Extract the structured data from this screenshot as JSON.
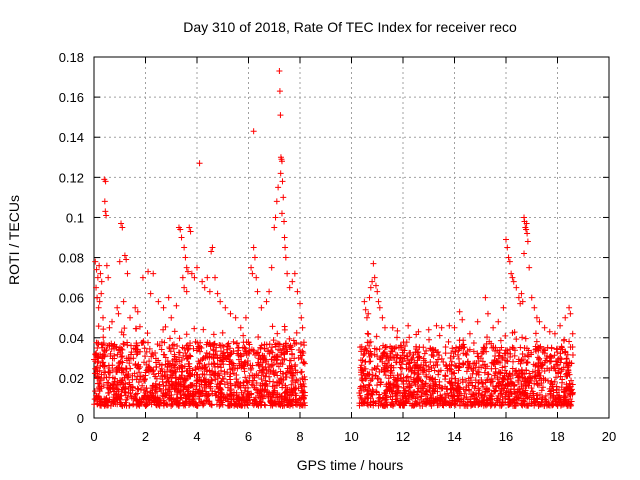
{
  "chart_data": {
    "type": "scatter",
    "title": "Day 310 of 2018, Rate Of TEC Index for receiver reco",
    "xlabel": "GPS time / hours",
    "ylabel": "ROTI / TECUs",
    "xlim": [
      0,
      20
    ],
    "ylim": [
      0,
      0.18
    ],
    "xticks": [
      0,
      2,
      4,
      6,
      8,
      10,
      12,
      14,
      16,
      18,
      20
    ],
    "xtick_labels": [
      "0",
      "2",
      "4",
      "6",
      "8",
      "10",
      "12",
      "14",
      "16",
      "18",
      "20"
    ],
    "yticks": [
      0,
      0.02,
      0.04,
      0.06,
      0.08,
      0.1,
      0.12,
      0.14,
      0.16,
      0.18
    ],
    "ytick_labels": [
      "0",
      "0.02",
      "0.04",
      "0.06",
      "0.08",
      "0.1",
      "0.12",
      "0.14",
      "0.16",
      "0.18"
    ],
    "grid": true,
    "marker": "+",
    "color": "#ff0000",
    "series": [
      {
        "name": "ROTI",
        "points": [
          [
            0.05,
            0.078
          ],
          [
            0.1,
            0.074
          ],
          [
            0.15,
            0.07
          ],
          [
            0.2,
            0.076
          ],
          [
            0.25,
            0.072
          ],
          [
            0.3,
            0.068
          ],
          [
            0.08,
            0.065
          ],
          [
            0.12,
            0.06
          ],
          [
            0.18,
            0.055
          ],
          [
            0.22,
            0.058
          ],
          [
            0.28,
            0.062
          ],
          [
            0.4,
            0.119
          ],
          [
            0.45,
            0.118
          ],
          [
            0.42,
            0.108
          ],
          [
            0.44,
            0.103
          ],
          [
            0.47,
            0.101
          ],
          [
            0.5,
            0.076
          ],
          [
            0.55,
            0.07
          ],
          [
            0.35,
            0.05
          ],
          [
            0.6,
            0.045
          ],
          [
            0.7,
            0.048
          ],
          [
            1.05,
            0.097
          ],
          [
            1.1,
            0.095
          ],
          [
            1.0,
            0.078
          ],
          [
            1.2,
            0.081
          ],
          [
            1.25,
            0.079
          ],
          [
            1.3,
            0.072
          ],
          [
            0.9,
            0.055
          ],
          [
            0.95,
            0.052
          ],
          [
            1.15,
            0.058
          ],
          [
            1.4,
            0.05
          ],
          [
            1.6,
            0.055
          ],
          [
            1.7,
            0.053
          ],
          [
            1.9,
            0.07
          ],
          [
            2.1,
            0.073
          ],
          [
            2.2,
            0.062
          ],
          [
            2.3,
            0.072
          ],
          [
            2.5,
            0.058
          ],
          [
            2.7,
            0.055
          ],
          [
            2.9,
            0.06
          ],
          [
            3.0,
            0.05
          ],
          [
            3.2,
            0.056
          ],
          [
            3.3,
            0.095
          ],
          [
            3.35,
            0.094
          ],
          [
            3.4,
            0.09
          ],
          [
            3.5,
            0.085
          ],
          [
            3.55,
            0.08
          ],
          [
            3.6,
            0.075
          ],
          [
            3.65,
            0.073
          ],
          [
            3.7,
            0.095
          ],
          [
            3.75,
            0.093
          ],
          [
            3.45,
            0.07
          ],
          [
            3.5,
            0.065
          ],
          [
            3.6,
            0.063
          ],
          [
            3.8,
            0.072
          ],
          [
            3.9,
            0.07
          ],
          [
            4.1,
            0.127
          ],
          [
            4.0,
            0.075
          ],
          [
            4.2,
            0.068
          ],
          [
            4.3,
            0.065
          ],
          [
            4.4,
            0.07
          ],
          [
            4.5,
            0.063
          ],
          [
            4.55,
            0.083
          ],
          [
            4.6,
            0.085
          ],
          [
            4.7,
            0.07
          ],
          [
            4.8,
            0.062
          ],
          [
            4.9,
            0.058
          ],
          [
            5.1,
            0.055
          ],
          [
            5.3,
            0.052
          ],
          [
            5.5,
            0.05
          ],
          [
            5.7,
            0.045
          ],
          [
            5.9,
            0.05
          ],
          [
            6.1,
            0.075
          ],
          [
            6.15,
            0.072
          ],
          [
            6.2,
            0.085
          ],
          [
            6.25,
            0.08
          ],
          [
            6.3,
            0.07
          ],
          [
            6.35,
            0.063
          ],
          [
            6.2,
            0.143
          ],
          [
            6.5,
            0.055
          ],
          [
            6.7,
            0.058
          ],
          [
            6.8,
            0.063
          ],
          [
            6.9,
            0.075
          ],
          [
            7.0,
            0.095
          ],
          [
            7.05,
            0.1
          ],
          [
            7.1,
            0.108
          ],
          [
            7.15,
            0.115
          ],
          [
            7.2,
            0.173
          ],
          [
            7.22,
            0.163
          ],
          [
            7.24,
            0.151
          ],
          [
            7.26,
            0.13
          ],
          [
            7.28,
            0.129
          ],
          [
            7.3,
            0.128
          ],
          [
            7.25,
            0.122
          ],
          [
            7.32,
            0.118
          ],
          [
            7.35,
            0.11
          ],
          [
            7.3,
            0.102
          ],
          [
            7.38,
            0.098
          ],
          [
            7.4,
            0.09
          ],
          [
            7.42,
            0.085
          ],
          [
            7.45,
            0.08
          ],
          [
            7.5,
            0.072
          ],
          [
            7.6,
            0.065
          ],
          [
            7.7,
            0.068
          ],
          [
            7.8,
            0.072
          ],
          [
            7.9,
            0.063
          ],
          [
            8.0,
            0.057
          ],
          [
            8.05,
            0.05
          ],
          [
            8.1,
            0.045
          ],
          [
            10.5,
            0.058
          ],
          [
            10.55,
            0.054
          ],
          [
            10.6,
            0.05
          ],
          [
            10.65,
            0.052
          ],
          [
            10.7,
            0.06
          ],
          [
            10.75,
            0.065
          ],
          [
            10.8,
            0.068
          ],
          [
            10.85,
            0.077
          ],
          [
            10.9,
            0.07
          ],
          [
            10.95,
            0.066
          ],
          [
            11.0,
            0.063
          ],
          [
            11.05,
            0.058
          ],
          [
            11.1,
            0.055
          ],
          [
            11.2,
            0.05
          ],
          [
            11.3,
            0.045
          ],
          [
            11.6,
            0.045
          ],
          [
            12.2,
            0.046
          ],
          [
            12.6,
            0.043
          ],
          [
            13.0,
            0.044
          ],
          [
            13.3,
            0.046
          ],
          [
            13.5,
            0.045
          ],
          [
            13.8,
            0.046
          ],
          [
            14.0,
            0.045
          ],
          [
            14.2,
            0.053
          ],
          [
            14.3,
            0.049
          ],
          [
            14.6,
            0.042
          ],
          [
            14.9,
            0.048
          ],
          [
            15.2,
            0.06
          ],
          [
            15.3,
            0.052
          ],
          [
            15.5,
            0.045
          ],
          [
            15.7,
            0.048
          ],
          [
            15.9,
            0.055
          ],
          [
            16.0,
            0.089
          ],
          [
            16.05,
            0.085
          ],
          [
            16.1,
            0.08
          ],
          [
            16.15,
            0.078
          ],
          [
            16.2,
            0.072
          ],
          [
            16.25,
            0.07
          ],
          [
            16.3,
            0.068
          ],
          [
            16.4,
            0.065
          ],
          [
            16.5,
            0.06
          ],
          [
            16.55,
            0.057
          ],
          [
            16.6,
            0.062
          ],
          [
            16.65,
            0.058
          ],
          [
            16.7,
            0.1
          ],
          [
            16.72,
            0.098
          ],
          [
            16.75,
            0.095
          ],
          [
            16.78,
            0.094
          ],
          [
            16.8,
            0.097
          ],
          [
            16.82,
            0.092
          ],
          [
            16.85,
            0.088
          ],
          [
            16.7,
            0.082
          ],
          [
            16.9,
            0.075
          ],
          [
            17.0,
            0.06
          ],
          [
            17.1,
            0.055
          ],
          [
            17.2,
            0.05
          ],
          [
            17.3,
            0.048
          ],
          [
            17.5,
            0.045
          ],
          [
            17.7,
            0.043
          ],
          [
            17.9,
            0.042
          ],
          [
            18.1,
            0.046
          ],
          [
            18.3,
            0.05
          ],
          [
            18.45,
            0.055
          ],
          [
            18.5,
            0.052
          ]
        ],
        "dense_bands": [
          {
            "x_range": [
              0.0,
              8.2
            ],
            "y_base": [
              0.006,
              0.038
            ],
            "count": 1500
          },
          {
            "x_range": [
              10.3,
              18.6
            ],
            "y_base": [
              0.006,
              0.036
            ],
            "count": 1400
          }
        ]
      }
    ]
  }
}
